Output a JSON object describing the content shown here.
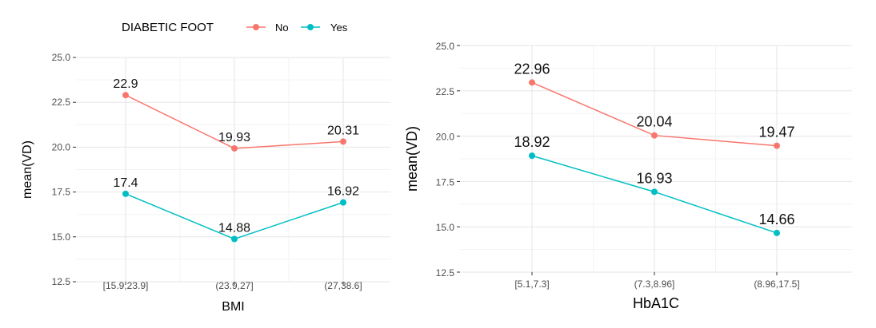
{
  "colors": {
    "no": "#F8766D",
    "yes": "#00BFC4",
    "grid_major": "#e6e6e6",
    "grid_minor": "#f3f3f3"
  },
  "legend": {
    "title": "DIABETIC FOOT",
    "entries": [
      {
        "label": "No",
        "color": "#F8766D"
      },
      {
        "label": "Yes",
        "color": "#00BFC4"
      }
    ]
  },
  "chart_data": [
    {
      "type": "line",
      "title": "",
      "xlabel": "BMI",
      "ylabel": "mean(VD)",
      "categories": [
        "[15.9,23.9]",
        "(23.9,27]",
        "(27,38.6]"
      ],
      "ylim": [
        12.5,
        25.0
      ],
      "yticks": [
        "12.5",
        "15.0",
        "17.5",
        "20.0",
        "22.5",
        "25.0"
      ],
      "series": [
        {
          "name": "No",
          "values": [
            22.9,
            19.93,
            20.31
          ],
          "labels": [
            "22.9",
            "19.93",
            "20.31"
          ]
        },
        {
          "name": "Yes",
          "values": [
            17.4,
            14.88,
            16.92
          ],
          "labels": [
            "17.4",
            "14.88",
            "16.92"
          ]
        }
      ]
    },
    {
      "type": "line",
      "title": "",
      "xlabel": "HbA1C",
      "ylabel": "mean(VD)",
      "categories": [
        "[5.1,7.3]",
        "(7.3,8.96]",
        "(8.96,17.5]"
      ],
      "ylim": [
        12.5,
        25.0
      ],
      "yticks": [
        "12.5",
        "15.0",
        "17.5",
        "20.0",
        "22.5",
        "25.0"
      ],
      "series": [
        {
          "name": "No",
          "values": [
            22.96,
            20.04,
            19.47
          ],
          "labels": [
            "22.96",
            "20.04",
            "19.47"
          ]
        },
        {
          "name": "Yes",
          "values": [
            18.92,
            16.93,
            14.66
          ],
          "labels": [
            "18.92",
            "16.93",
            "14.66"
          ]
        }
      ]
    }
  ]
}
